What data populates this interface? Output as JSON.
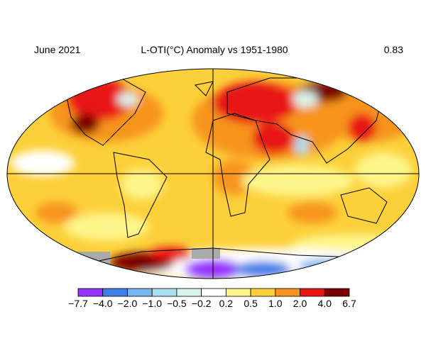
{
  "header": {
    "period": "June 2021",
    "title": "L-OTI(°C) Anomaly vs 1951-1980",
    "global_mean": "0.83"
  },
  "legend": {
    "labels": [
      "−7.7",
      "−4.0",
      "−2.0",
      "−1.0",
      "−0.5",
      "−0.2",
      "0.2",
      "0.5",
      "1.0",
      "2.0",
      "4.0",
      "6.7"
    ],
    "colors": [
      "#9933ff",
      "#3f7fe8",
      "#79b6ef",
      "#a9def0",
      "#d9f2ea",
      "#ffffff",
      "#fdf58a",
      "#fcd03a",
      "#f7941e",
      "#e81414",
      "#7a0000"
    ]
  }
}
